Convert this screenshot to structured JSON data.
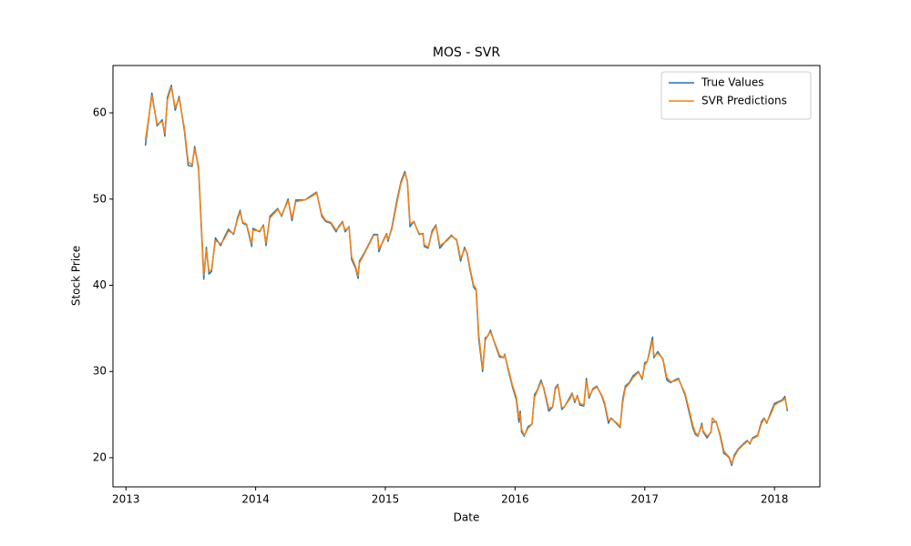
{
  "chart_data": {
    "type": "line",
    "title": "MOS - SVR",
    "x_label": "Date",
    "y_label": "Stock Price",
    "x": [
      2013.15,
      2013.2,
      2013.24,
      2013.28,
      2013.3,
      2013.32,
      2013.35,
      2013.38,
      2013.41,
      2013.45,
      2013.48,
      2013.51,
      2013.53,
      2013.56,
      2013.6,
      2013.62,
      2013.64,
      2013.66,
      2013.69,
      2013.73,
      2013.76,
      2013.79,
      2013.83,
      2013.86,
      2013.88,
      2013.9,
      2013.93,
      2013.97,
      2013.98,
      2014.03,
      2014.06,
      2014.08,
      2014.11,
      2014.17,
      2014.2,
      2014.25,
      2014.28,
      2014.31,
      2014.38,
      2014.42,
      2014.47,
      2014.51,
      2014.54,
      2014.58,
      2014.62,
      2014.64,
      2014.67,
      2014.69,
      2014.72,
      2014.74,
      2014.77,
      2014.79,
      2014.8,
      2014.84,
      2014.88,
      2014.91,
      2014.94,
      2014.95,
      2014.98,
      2015.01,
      2015.02,
      2015.05,
      2015.09,
      2015.12,
      2015.15,
      2015.17,
      2015.19,
      2015.22,
      2015.26,
      2015.29,
      2015.3,
      2015.33,
      2015.36,
      2015.39,
      2015.42,
      2015.47,
      2015.51,
      2015.55,
      2015.58,
      2015.61,
      2015.63,
      2015.65,
      2015.68,
      2015.7,
      2015.72,
      2015.75,
      2015.77,
      2015.79,
      2015.81,
      2015.84,
      2015.88,
      2015.91,
      2015.92,
      2015.95,
      2015.98,
      2016.01,
      2016.03,
      2016.04,
      2016.05,
      2016.07,
      2016.1,
      2016.13,
      2016.15,
      2016.17,
      2016.2,
      2016.22,
      2016.26,
      2016.29,
      2016.31,
      2016.33,
      2016.36,
      2016.38,
      2016.43,
      2016.44,
      2016.46,
      2016.48,
      2016.5,
      2016.53,
      2016.55,
      2016.57,
      2016.6,
      2016.63,
      2016.67,
      2016.69,
      2016.72,
      2016.74,
      2016.78,
      2016.81,
      2016.83,
      2016.85,
      2016.88,
      2016.91,
      2016.95,
      2016.98,
      2017.0,
      2017.02,
      2017.06,
      2017.07,
      2017.1,
      2017.14,
      2017.17,
      2017.2,
      2017.23,
      2017.26,
      2017.31,
      2017.34,
      2017.37,
      2017.39,
      2017.41,
      2017.44,
      2017.45,
      2017.48,
      2017.51,
      2017.52,
      2017.55,
      2017.58,
      2017.61,
      2017.63,
      2017.65,
      2017.67,
      2017.69,
      2017.72,
      2017.76,
      2017.79,
      2017.81,
      2017.83,
      2017.87,
      2017.9,
      2017.92,
      2017.94,
      2017.97,
      2018.0,
      2018.03,
      2018.06,
      2018.08,
      2018.1
    ],
    "series": [
      {
        "name": "True Values",
        "color": "#1f77b4",
        "values": [
          56.2,
          62.3,
          58.5,
          59.2,
          57.3,
          61.8,
          63.2,
          60.3,
          61.9,
          58.0,
          53.9,
          53.8,
          56.1,
          53.5,
          40.7,
          44.4,
          41.3,
          41.6,
          45.5,
          44.6,
          45.6,
          46.5,
          45.9,
          47.8,
          48.7,
          47.2,
          47.0,
          44.5,
          46.6,
          46.2,
          47.0,
          44.6,
          48.0,
          48.9,
          48.0,
          50.0,
          47.5,
          49.9,
          49.9,
          50.3,
          50.8,
          48.0,
          47.4,
          47.2,
          46.2,
          46.8,
          47.4,
          46.2,
          46.8,
          43.0,
          42.0,
          40.8,
          42.8,
          43.8,
          45.0,
          45.9,
          45.9,
          43.9,
          45.1,
          46.0,
          45.1,
          46.7,
          49.9,
          52.0,
          53.2,
          52.0,
          46.8,
          47.4,
          45.9,
          46.0,
          44.5,
          44.3,
          46.3,
          47.0,
          44.3,
          45.2,
          45.8,
          45.2,
          42.8,
          44.4,
          43.7,
          42.0,
          39.8,
          39.4,
          33.8,
          30.0,
          33.9,
          34.1,
          34.8,
          33.4,
          31.7,
          31.6,
          32.0,
          30.0,
          28.2,
          26.7,
          24.1,
          25.4,
          23.0,
          22.5,
          23.6,
          23.9,
          27.3,
          27.8,
          29.0,
          28.1,
          25.4,
          25.9,
          28.1,
          28.5,
          25.6,
          25.9,
          27.2,
          27.5,
          26.4,
          27.2,
          26.1,
          26.0,
          29.2,
          26.9,
          28.0,
          28.3,
          27.1,
          26.2,
          24.0,
          24.6,
          24.0,
          23.5,
          26.8,
          28.3,
          28.7,
          29.5,
          30.0,
          29.1,
          31.0,
          31.2,
          34.0,
          31.6,
          32.3,
          31.4,
          29.0,
          28.7,
          29.0,
          29.2,
          27.3,
          25.4,
          23.5,
          22.7,
          22.5,
          24.0,
          23.0,
          22.3,
          23.0,
          24.1,
          24.2,
          22.6,
          20.5,
          20.3,
          20.0,
          19.1,
          20.3,
          21.0,
          21.6,
          22.0,
          21.6,
          22.3,
          22.6,
          24.2,
          24.6,
          24.0,
          25.2,
          26.3,
          26.5,
          26.7,
          27.1,
          25.4
        ]
      },
      {
        "name": "SVR Predictions",
        "color": "#ff7f0e",
        "values": [
          56.8,
          62.0,
          58.7,
          59.0,
          57.6,
          61.5,
          63.0,
          60.6,
          61.7,
          58.3,
          54.3,
          54.0,
          55.8,
          53.8,
          41.2,
          44.1,
          41.6,
          41.8,
          45.2,
          44.8,
          45.4,
          46.3,
          46.0,
          47.6,
          48.5,
          47.3,
          47.1,
          44.8,
          46.4,
          46.3,
          46.9,
          44.9,
          47.8,
          48.8,
          48.1,
          49.8,
          47.8,
          49.7,
          49.9,
          50.2,
          50.7,
          48.2,
          47.5,
          47.3,
          46.4,
          46.7,
          47.3,
          46.4,
          46.7,
          43.3,
          42.2,
          41.1,
          42.6,
          43.7,
          44.9,
          45.8,
          45.8,
          44.2,
          45.0,
          45.9,
          45.3,
          46.5,
          49.6,
          51.8,
          53.0,
          52.1,
          47.2,
          47.3,
          46.0,
          45.9,
          44.7,
          44.4,
          46.1,
          46.9,
          44.6,
          45.1,
          45.7,
          45.3,
          43.1,
          44.2,
          43.8,
          42.2,
          40.0,
          39.6,
          34.3,
          30.3,
          33.6,
          34.2,
          34.6,
          33.5,
          31.9,
          31.6,
          31.9,
          30.2,
          28.4,
          27.0,
          24.6,
          25.1,
          23.3,
          22.6,
          23.4,
          23.9,
          27.0,
          27.7,
          28.8,
          28.2,
          25.7,
          25.9,
          27.9,
          28.4,
          25.8,
          25.9,
          27.0,
          27.4,
          26.6,
          27.1,
          26.3,
          26.1,
          28.9,
          27.1,
          27.9,
          28.2,
          27.2,
          26.4,
          24.3,
          24.5,
          24.1,
          23.6,
          26.4,
          28.1,
          28.6,
          29.3,
          29.9,
          29.2,
          30.7,
          31.2,
          33.6,
          31.8,
          32.1,
          31.5,
          29.3,
          28.8,
          28.9,
          29.1,
          27.5,
          25.7,
          23.8,
          22.9,
          22.6,
          23.8,
          23.1,
          22.5,
          22.9,
          24.6,
          24.1,
          22.8,
          20.8,
          20.4,
          20.1,
          19.3,
          20.1,
          20.9,
          21.5,
          21.9,
          21.7,
          22.2,
          22.5,
          24.0,
          24.5,
          24.1,
          25.0,
          26.1,
          26.4,
          26.6,
          26.9,
          25.6
        ]
      }
    ],
    "xlim": [
      2012.9,
      2018.35
    ],
    "ylim": [
      16.62,
      65.49
    ],
    "xticks": [
      2013,
      2014,
      2015,
      2016,
      2017,
      2018
    ],
    "yticks": [
      20,
      30,
      40,
      50,
      60
    ],
    "legend": "upper right"
  }
}
